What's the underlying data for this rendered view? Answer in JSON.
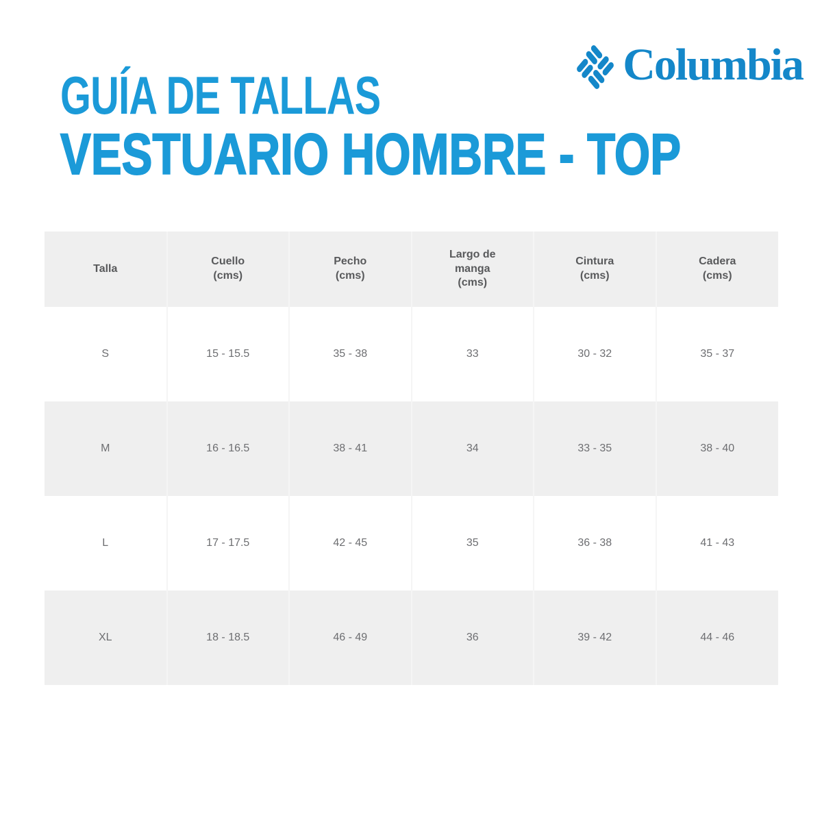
{
  "theme": {
    "accent_blue": "#1b9ad8",
    "logo_blue": "#1487c9",
    "table_gray": "#efefef",
    "separator": "#f5f5f5",
    "header_text_gray": "#58595b",
    "cell_text_gray": "#6d6e71"
  },
  "brand": {
    "wordmark": "Columbia",
    "icon": "columbia-diamond-logo"
  },
  "title": {
    "line1": "GUÍA DE TALLAS",
    "line2": "VESTUARIO HOMBRE - TOP"
  },
  "size_table": {
    "columns": [
      {
        "label": "Talla",
        "unit": ""
      },
      {
        "label": "Cuello",
        "unit": "(cms)"
      },
      {
        "label": "Pecho",
        "unit": "(cms)"
      },
      {
        "label": "Largo de manga",
        "unit": "(cms)"
      },
      {
        "label": "Cintura",
        "unit": "(cms)"
      },
      {
        "label": "Cadera",
        "unit": "(cms)"
      }
    ],
    "rows": [
      [
        "S",
        "15 - 15.5",
        "35 - 38",
        "33",
        "30 - 32",
        "35 - 37"
      ],
      [
        "M",
        "16 - 16.5",
        "38 - 41",
        "34",
        "33 - 35",
        "38 - 40"
      ],
      [
        "L",
        "17 - 17.5",
        "42 - 45",
        "35",
        "36 - 38",
        "41 - 43"
      ],
      [
        "XL",
        "18 - 18.5",
        "46 - 49",
        "36",
        "39 - 42",
        "44 - 46"
      ]
    ]
  }
}
